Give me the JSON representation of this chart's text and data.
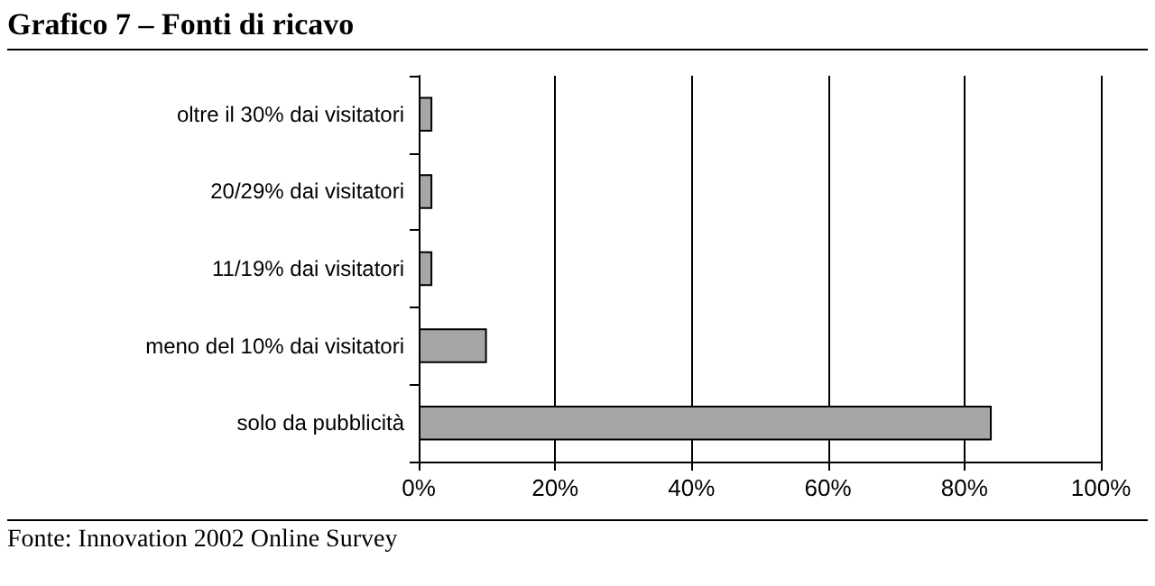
{
  "chart_data": {
    "type": "bar",
    "orientation": "horizontal",
    "title": "Grafico 7 – Fonti di ricavo",
    "categories": [
      "oltre il 30% dai visitatori",
      "20/29% dai visitatori",
      "11/19% dai visitatori",
      "meno del 10% dai visitatori",
      "solo da pubblicità"
    ],
    "values": [
      2,
      2,
      2,
      10,
      84
    ],
    "color": "#a6a6a6",
    "xlim": [
      0,
      100
    ],
    "xticks": [
      {
        "value": 0,
        "label": "0%"
      },
      {
        "value": 20,
        "label": "20%"
      },
      {
        "value": 40,
        "label": "40%"
      },
      {
        "value": 60,
        "label": "60%"
      },
      {
        "value": 80,
        "label": "80%"
      },
      {
        "value": 100,
        "label": "100%"
      }
    ],
    "grid": "x",
    "annotations": [
      "Fonte: Innovation 2002 Online Survey"
    ]
  }
}
